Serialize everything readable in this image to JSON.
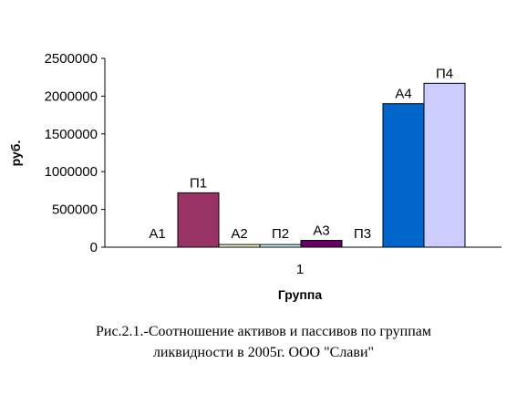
{
  "chart_data": {
    "type": "bar",
    "categories": [
      "1"
    ],
    "series": [
      {
        "name": "А1",
        "values": [
          0
        ],
        "color": "#9999ff",
        "label": "А1"
      },
      {
        "name": "П1",
        "values": [
          720000
        ],
        "color": "#993366",
        "label": "П1"
      },
      {
        "name": "А2",
        "values": [
          35000
        ],
        "color": "#ffffcc",
        "label": "А2"
      },
      {
        "name": "П2",
        "values": [
          35000
        ],
        "color": "#ccffff",
        "label": "П2"
      },
      {
        "name": "А3",
        "values": [
          90000
        ],
        "color": "#660066",
        "label": "А3"
      },
      {
        "name": "П3",
        "values": [
          0
        ],
        "color": "#ff8080",
        "label": "П3"
      },
      {
        "name": "А4",
        "values": [
          1900000
        ],
        "color": "#0066cc",
        "label": "А4"
      },
      {
        "name": "П4",
        "values": [
          2170000
        ],
        "color": "#ccccff",
        "label": "П4"
      }
    ],
    "yticks": [
      "0",
      "500000",
      "1000000",
      "1500000",
      "2000000",
      "2500000"
    ],
    "ylim": [
      0,
      2500000
    ],
    "xlabel": "Группа",
    "ylabel": "руб.",
    "grid": false,
    "legend": "none"
  },
  "caption": {
    "line1": "Рис.2.1.-Соотношение активов и пассивов по группам",
    "line2": "ликвидности в 2005г. ООО \"Слави\""
  }
}
